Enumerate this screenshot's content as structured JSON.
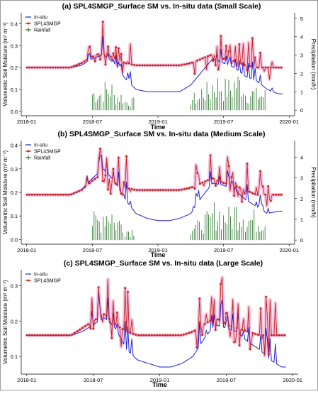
{
  "colors": {
    "insitu": "#1f1fd6",
    "smap": "#c81e1e",
    "smap_halo": "#f2b8d8",
    "rain": "#1e6e1e",
    "axis": "#000000"
  },
  "chart_data": [
    {
      "type": "line",
      "title": "(a) SPL4SMGP_Surface SM vs. In-situ data (Small Scale)",
      "xlabel": "Time",
      "ylabel": "Volumetric Soil Moisture (m³ m⁻³)",
      "y2label": "Precipitation (mm/h)",
      "xticks": [
        "2018-01",
        "2018-07",
        "2019-01",
        "2019-07",
        "2020-01"
      ],
      "yticks": [
        "0.0",
        "0.1",
        "0.2",
        "0.3",
        "0.4"
      ],
      "y2ticks": [
        "0",
        "1",
        "2",
        "3",
        "4",
        "5"
      ],
      "ylim": [
        -0.02,
        0.45
      ],
      "y2lim": [
        -0.3,
        5.3
      ],
      "legend": [
        "In-situ",
        "SPL4SMGP",
        "Rainfall"
      ],
      "legend_position": "top-left",
      "series": [
        {
          "name": "In-situ",
          "x": [
            "2018-01",
            "2018-03",
            "2018-05",
            "2018-06",
            "2018-07",
            "2018-08",
            "2018-09",
            "2018-10",
            "2018-11",
            "2018-12",
            "2019-01",
            "2019-02",
            "2019-03",
            "2019-04",
            "2019-05",
            "2019-06",
            "2019-07",
            "2019-08",
            "2019-09",
            "2019-10",
            "2019-11",
            "2019-12"
          ],
          "values": [
            0.2,
            0.2,
            0.2,
            0.21,
            0.24,
            0.26,
            0.22,
            0.15,
            0.1,
            0.09,
            0.09,
            0.09,
            0.09,
            0.12,
            0.18,
            0.24,
            0.22,
            0.2,
            0.16,
            0.14,
            0.1,
            0.08
          ]
        },
        {
          "name": "SPL4SMGP",
          "x": [
            "2018-01",
            "2018-03",
            "2018-05",
            "2018-06",
            "2018-07",
            "2018-08",
            "2018-09",
            "2018-10",
            "2018-11",
            "2018-12",
            "2019-01",
            "2019-02",
            "2019-03",
            "2019-04",
            "2019-05",
            "2019-06",
            "2019-07",
            "2019-08",
            "2019-09",
            "2019-10",
            "2019-11",
            "2019-12"
          ],
          "values": [
            0.2,
            0.2,
            0.2,
            0.22,
            0.25,
            0.27,
            0.24,
            0.22,
            0.21,
            0.21,
            0.21,
            0.21,
            0.21,
            0.22,
            0.24,
            0.26,
            0.24,
            0.23,
            0.21,
            0.2,
            0.2,
            0.2
          ]
        },
        {
          "name": "Rainfall",
          "x": [
            "2018-07",
            "2018-08",
            "2018-09",
            "2018-10",
            "2019-04",
            "2019-05",
            "2019-06",
            "2019-07",
            "2019-08",
            "2019-09",
            "2019-10"
          ],
          "values": [
            1.0,
            1.2,
            0.8,
            0.5,
            0.7,
            1.1,
            1.5,
            1.3,
            1.6,
            1.0,
            0.9
          ]
        }
      ]
    },
    {
      "type": "line",
      "title": "(b) SPL4SMGP_Surface SM vs. In-situ data (Medium Scale)",
      "xlabel": "Time",
      "ylabel": "Volumetric Soil Moisture (m³ m⁻³)",
      "y2label": "Precipitation (mm/h)",
      "xticks": [
        "2018-01",
        "2018-07",
        "2019-01",
        "2019-07",
        "2020-01"
      ],
      "yticks": [
        "0.0",
        "0.1",
        "0.2",
        "0.3",
        "0.4"
      ],
      "y2ticks": [
        "0",
        "1",
        "2",
        "3",
        "4"
      ],
      "ylim": [
        -0.02,
        0.42
      ],
      "y2lim": [
        -0.2,
        4.8
      ],
      "legend": [
        "In-situ",
        "SPL4SMGP",
        "Rainfall"
      ],
      "legend_position": "top-left",
      "series": [
        {
          "name": "In-situ",
          "x": [
            "2018-01",
            "2018-03",
            "2018-05",
            "2018-06",
            "2018-07",
            "2018-08",
            "2018-09",
            "2018-10",
            "2018-11",
            "2018-12",
            "2019-01",
            "2019-02",
            "2019-03",
            "2019-04",
            "2019-05",
            "2019-06",
            "2019-07",
            "2019-08",
            "2019-09",
            "2019-10",
            "2019-11",
            "2019-12"
          ],
          "values": [
            0.19,
            0.19,
            0.19,
            0.21,
            0.26,
            0.3,
            0.25,
            0.17,
            0.11,
            0.09,
            0.08,
            0.08,
            0.09,
            0.11,
            0.18,
            0.24,
            0.23,
            0.21,
            0.17,
            0.14,
            0.11,
            0.12
          ]
        },
        {
          "name": "SPL4SMGP",
          "x": [
            "2018-01",
            "2018-03",
            "2018-05",
            "2018-06",
            "2018-07",
            "2018-08",
            "2018-09",
            "2018-10",
            "2018-11",
            "2018-12",
            "2019-01",
            "2019-02",
            "2019-03",
            "2019-04",
            "2019-05",
            "2019-06",
            "2019-07",
            "2019-08",
            "2019-09",
            "2019-10",
            "2019-11",
            "2019-12"
          ],
          "values": [
            0.19,
            0.19,
            0.19,
            0.21,
            0.25,
            0.28,
            0.24,
            0.22,
            0.21,
            0.21,
            0.21,
            0.21,
            0.21,
            0.22,
            0.24,
            0.26,
            0.24,
            0.23,
            0.21,
            0.19,
            0.19,
            0.19
          ]
        },
        {
          "name": "Rainfall",
          "x": [
            "2018-07",
            "2018-08",
            "2018-09",
            "2018-10",
            "2019-04",
            "2019-05",
            "2019-06",
            "2019-07",
            "2019-08",
            "2019-09",
            "2019-10"
          ],
          "values": [
            1.0,
            1.4,
            0.9,
            0.5,
            0.7,
            1.0,
            1.4,
            1.2,
            1.5,
            1.1,
            1.0
          ]
        }
      ]
    },
    {
      "type": "line",
      "title": "(c) SPL4SMGP_Surface SM vs. In-situ data (Large Scale)",
      "xlabel": "Time",
      "ylabel": "Volumetric Soil Moisture (m³ m⁻³)",
      "xticks": [
        "2018-01",
        "2018-07",
        "2019-01",
        "2019-07",
        "2020-01"
      ],
      "yticks": [
        "0.1",
        "0.2",
        "0.3"
      ],
      "ylim": [
        0.05,
        0.345
      ],
      "legend": [
        "In-situ",
        "SPL4SMGP"
      ],
      "legend_position": "top-left",
      "series": [
        {
          "name": "In-situ",
          "x": [
            "2018-01",
            "2018-03",
            "2018-05",
            "2018-06",
            "2018-07",
            "2018-08",
            "2018-09",
            "2018-10",
            "2018-11",
            "2018-12",
            "2019-01",
            "2019-02",
            "2019-03",
            "2019-04",
            "2019-05",
            "2019-06",
            "2019-07",
            "2019-08",
            "2019-09",
            "2019-10",
            "2019-11",
            "2019-12"
          ],
          "values": [
            0.16,
            0.16,
            0.16,
            0.17,
            0.19,
            0.21,
            0.18,
            0.12,
            0.09,
            0.08,
            0.07,
            0.07,
            0.08,
            0.1,
            0.15,
            0.19,
            0.18,
            0.17,
            0.14,
            0.12,
            0.09,
            0.07
          ]
        },
        {
          "name": "SPL4SMGP",
          "x": [
            "2018-01",
            "2018-03",
            "2018-05",
            "2018-06",
            "2018-07",
            "2018-08",
            "2018-09",
            "2018-10",
            "2018-11",
            "2018-12",
            "2019-01",
            "2019-02",
            "2019-03",
            "2019-04",
            "2019-05",
            "2019-06",
            "2019-07",
            "2019-08",
            "2019-09",
            "2019-10",
            "2019-11",
            "2019-12"
          ],
          "values": [
            0.16,
            0.16,
            0.16,
            0.18,
            0.2,
            0.22,
            0.19,
            0.17,
            0.16,
            0.16,
            0.16,
            0.16,
            0.16,
            0.17,
            0.19,
            0.21,
            0.19,
            0.18,
            0.17,
            0.16,
            0.16,
            0.16
          ]
        }
      ]
    }
  ]
}
